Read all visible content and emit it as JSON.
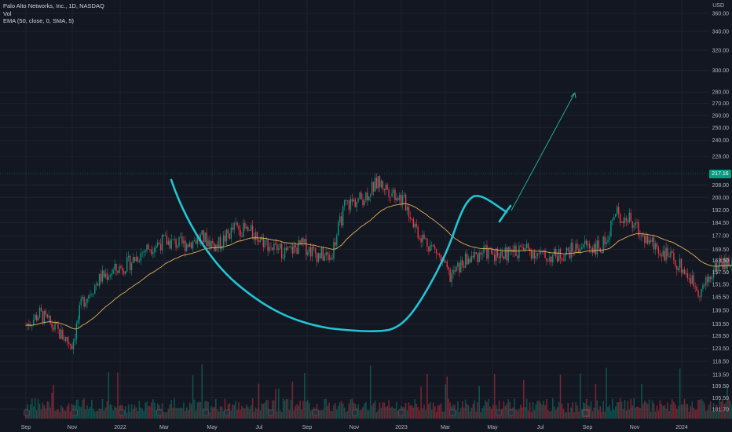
{
  "legend": {
    "title": "Palo Alto Networks, Inc., 1D, NASDAQ",
    "vol": "Vol",
    "ema": "EMA (50, close, 0, SMA, 5)"
  },
  "currency": "USD",
  "last_price": "217.16",
  "colors": {
    "background": "#131722",
    "up": "#089981",
    "down": "#f23645",
    "ema": "#e0b25a",
    "cup_line": "#22c5d4",
    "arrow": "#22a99a",
    "grid": "#1e222d"
  },
  "chart_data": {
    "type": "candlestick",
    "title": "Palo Alto Networks, Inc., 1D, NASDAQ",
    "y_axis": {
      "scale": "log",
      "ticks": [
        360,
        340,
        320,
        300,
        280,
        270,
        260,
        250,
        240,
        228,
        217.16,
        208,
        200,
        192,
        184.5,
        177,
        169.5,
        163.5,
        157.5,
        151.5,
        145.5,
        139.5,
        133.5,
        128.5,
        123.5,
        118.5,
        113.5,
        109.5,
        105.5,
        101.7
      ]
    },
    "x_axis": {
      "ticks": [
        "Sep",
        "Nov",
        "2022",
        "Mar",
        "May",
        "Jul",
        "Sep",
        "Nov",
        "2023",
        "Mar",
        "May",
        "Jul",
        "Sep",
        "Nov",
        "2024"
      ]
    },
    "price_path": [
      {
        "x": 0,
        "close": 133
      },
      {
        "x": 0.3,
        "close": 138
      },
      {
        "x": 0.7,
        "close": 130
      },
      {
        "x": 1.0,
        "close": 125
      },
      {
        "x": 1.2,
        "close": 143
      },
      {
        "x": 1.6,
        "close": 155
      },
      {
        "x": 2.2,
        "close": 162
      },
      {
        "x": 2.6,
        "close": 170
      },
      {
        "x": 3.0,
        "close": 174
      },
      {
        "x": 3.4,
        "close": 172
      },
      {
        "x": 3.8,
        "close": 176
      },
      {
        "x": 4.1,
        "close": 171
      },
      {
        "x": 4.5,
        "close": 182
      },
      {
        "x": 4.9,
        "close": 178
      },
      {
        "x": 5.3,
        "close": 170
      },
      {
        "x": 5.6,
        "close": 168
      },
      {
        "x": 5.9,
        "close": 172
      },
      {
        "x": 6.2,
        "close": 167
      },
      {
        "x": 6.5,
        "close": 165
      },
      {
        "x": 6.8,
        "close": 195
      },
      {
        "x": 7.2,
        "close": 200
      },
      {
        "x": 7.5,
        "close": 210
      },
      {
        "x": 7.9,
        "close": 202
      },
      {
        "x": 8.1,
        "close": 196
      },
      {
        "x": 8.4,
        "close": 178
      },
      {
        "x": 8.8,
        "close": 168
      },
      {
        "x": 9.1,
        "close": 155
      },
      {
        "x": 9.4,
        "close": 163
      },
      {
        "x": 9.8,
        "close": 168
      },
      {
        "x": 10.3,
        "close": 167
      },
      {
        "x": 10.7,
        "close": 170
      },
      {
        "x": 11.1,
        "close": 165
      },
      {
        "x": 11.5,
        "close": 167
      },
      {
        "x": 11.9,
        "close": 172
      },
      {
        "x": 12.3,
        "close": 170
      },
      {
        "x": 12.6,
        "close": 190
      },
      {
        "x": 12.9,
        "close": 186
      },
      {
        "x": 13.2,
        "close": 176
      },
      {
        "x": 13.6,
        "close": 168
      },
      {
        "x": 14.0,
        "close": 160
      },
      {
        "x": 14.4,
        "close": 148
      },
      {
        "x": 14.8,
        "close": 163
      },
      {
        "x": 15.2,
        "close": 160
      },
      {
        "x": 15.6,
        "close": 175
      },
      {
        "x": 16.0,
        "close": 158
      },
      {
        "x": 16.4,
        "close": 146
      },
      {
        "x": 16.8,
        "close": 136
      },
      {
        "x": 17.0,
        "close": 134
      },
      {
        "x": 17.3,
        "close": 145
      },
      {
        "x": 17.6,
        "close": 150
      },
      {
        "x": 17.9,
        "close": 158
      },
      {
        "x": 18.2,
        "close": 167
      },
      {
        "x": 18.5,
        "close": 183
      },
      {
        "x": 18.8,
        "close": 190
      },
      {
        "x": 19.1,
        "close": 193
      },
      {
        "x": 19.4,
        "close": 187
      },
      {
        "x": 19.7,
        "close": 196
      },
      {
        "x": 20.0,
        "close": 195
      },
      {
        "x": 20.3,
        "close": 192
      },
      {
        "x": 20.6,
        "close": 180
      },
      {
        "x": 20.9,
        "close": 197
      },
      {
        "x": 21.1,
        "close": 192
      },
      {
        "x": 21.3,
        "close": 206
      },
      {
        "x": 21.5,
        "close": 217.16
      }
    ],
    "series": [
      {
        "name": "EMA (50, close, 0, SMA, 5)"
      },
      {
        "name": "Vol"
      }
    ],
    "annotations": [
      "cup-and-handle curve",
      "projection arrow"
    ]
  }
}
